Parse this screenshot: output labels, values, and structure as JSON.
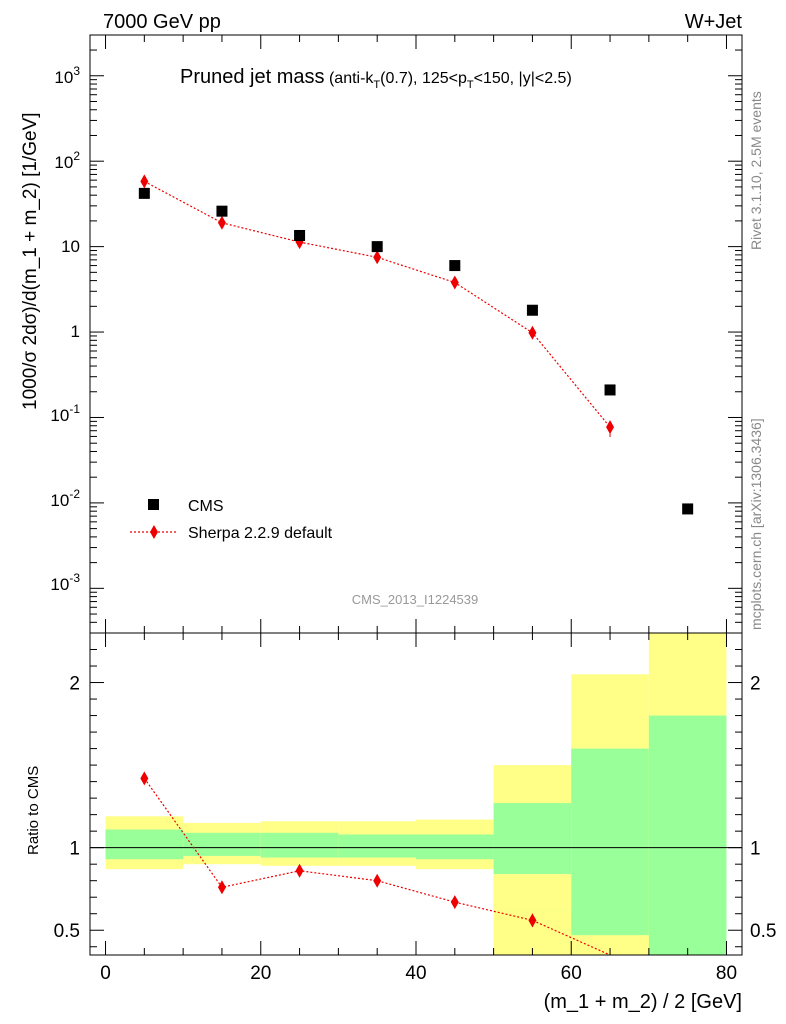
{
  "header": {
    "left": "7000 GeV pp",
    "right": "W+Jet"
  },
  "side_labels": {
    "rivet": "Rivet 3.1.10,  2.5M events",
    "mcplots": "mcplots.cern.ch [arXiv:1306.3436]"
  },
  "chart_data": [
    {
      "type": "scatter",
      "title_main": "Pruned jet mass",
      "title_cuts": "(anti-kT(0.7), 125<pT<150, |y|<2.5)",
      "watermark": "CMS_2013_I1224539",
      "ylabel": "1000/σ 2dσ)/d(m_1 + m_2) [1/GeV]",
      "yscale": "log",
      "ylim": [
        0.0003,
        3000
      ],
      "xlim": [
        -2,
        82
      ],
      "y_tick_labels": [
        "10-3",
        "10-2",
        "10-1",
        "1",
        "10",
        "102",
        "103"
      ],
      "legend": {
        "placement": "bottom-left",
        "entries": [
          "CMS",
          "Sherpa 2.2.9 default"
        ]
      },
      "series": [
        {
          "name": "CMS",
          "marker": "square",
          "color": "#000000",
          "x": [
            5,
            15,
            25,
            35,
            45,
            55,
            65,
            75
          ],
          "y": [
            42,
            26,
            13.5,
            10,
            6,
            1.8,
            0.21,
            0.0085
          ]
        },
        {
          "name": "Sherpa 2.2.9 default",
          "marker": "diamond",
          "line": "dotted",
          "color": "#ee0000",
          "x": [
            5,
            15,
            25,
            35,
            45,
            55,
            65
          ],
          "y": [
            58,
            19,
            11.3,
            7.5,
            3.8,
            0.98,
            0.077
          ],
          "yerr_low": [
            0,
            0,
            0,
            0,
            0,
            0,
            0.018
          ],
          "yerr_high": [
            0,
            0,
            0,
            0,
            0,
            0,
            0.012
          ]
        }
      ]
    },
    {
      "type": "scatter",
      "ylabel": "Ratio to CMS",
      "xlabel": "(m_1 + m_2) / 2 [GeV]",
      "ylim": [
        0.35,
        2.3
      ],
      "xlim": [
        -2,
        82
      ],
      "x_ticks": [
        0,
        20,
        40,
        60,
        80
      ],
      "y_ticks": [
        0.5,
        1,
        2
      ],
      "y_tick_labels": [
        "0.5",
        "1",
        "2"
      ],
      "reference_line": 1,
      "bands": {
        "bin_edges": [
          0,
          10,
          20,
          30,
          40,
          50,
          60,
          70,
          80
        ],
        "green_color": "#99ff99",
        "yellow_color": "#ffff88",
        "green_low": [
          0.93,
          0.95,
          0.94,
          0.94,
          0.93,
          0.62,
          0.35,
          0.35
        ],
        "green_high": [
          1.11,
          1.09,
          1.09,
          1.08,
          1.08,
          1.27,
          1.6,
          1.8
        ],
        "yellow_low": [
          0.87,
          0.9,
          0.89,
          0.89,
          0.87,
          0.35,
          0.35,
          0.35
        ],
        "yellow_high": [
          1.19,
          1.15,
          1.16,
          1.16,
          1.17,
          1.5,
          2.05,
          2.3
        ],
        "green_gaps": [
          {
            "x0": 50,
            "x1": 60,
            "low": 0.62,
            "high": 0.84
          },
          {
            "x0": 60,
            "x1": 70,
            "low": 0.35,
            "high": 0.47
          }
        ]
      },
      "series": [
        {
          "name": "Sherpa 2.2.9 default",
          "marker": "diamond",
          "line": "dotted",
          "color": "#ee0000",
          "x": [
            5,
            15,
            25,
            35,
            45,
            55,
            65
          ],
          "y": [
            1.42,
            0.76,
            0.86,
            0.8,
            0.67,
            0.56,
            0.31
          ],
          "yerr": [
            0,
            0,
            0,
            0,
            0.02,
            0.04,
            0
          ]
        }
      ]
    }
  ]
}
